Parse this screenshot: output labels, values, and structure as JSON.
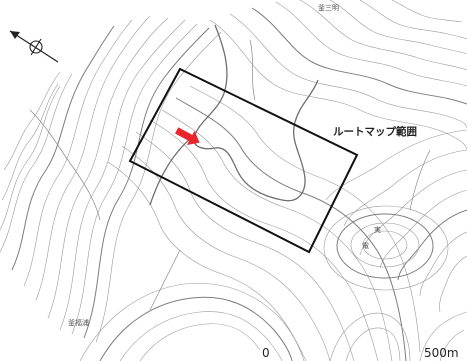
{
  "map": {
    "place_top": "釜三明",
    "place_bottom_left": "釜福浦",
    "route_map_label": "ルートマップ範囲",
    "small_label_1": "実",
    "small_label_2": "電",
    "scale_start": "0",
    "scale_end": "500m"
  },
  "icons": {
    "north_arrow": "north-arrow-icon",
    "location_arrow": "red-arrow-icon"
  },
  "colors": {
    "location_arrow": "#e8262b",
    "route_box": "#111111",
    "contour": "#9a9a9a"
  }
}
